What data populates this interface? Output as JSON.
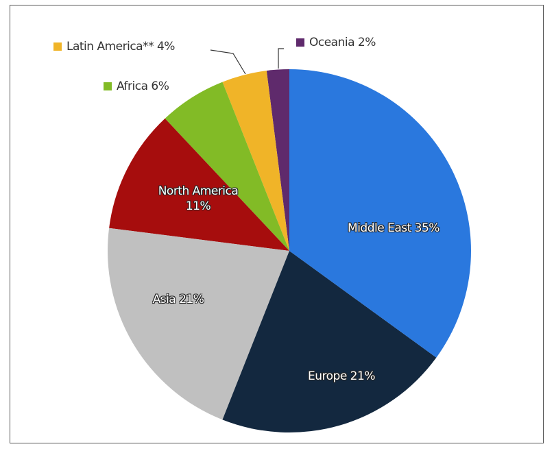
{
  "chart_data": {
    "type": "pie",
    "values": [
      35,
      21,
      21,
      11,
      6,
      4,
      2
    ],
    "value_labels": [
      "Middle East 35%",
      "Europe 21%",
      "Asia 21%",
      "North America 11%",
      "Africa 6%",
      "Latin America** 4%",
      "Oceania 2%"
    ],
    "colors": [
      "#2a78de",
      "#13283f",
      "#c0c0c0",
      "#a60d0d",
      "#82bb26",
      "#f0b428",
      "#5f2a6c"
    ]
  }
}
